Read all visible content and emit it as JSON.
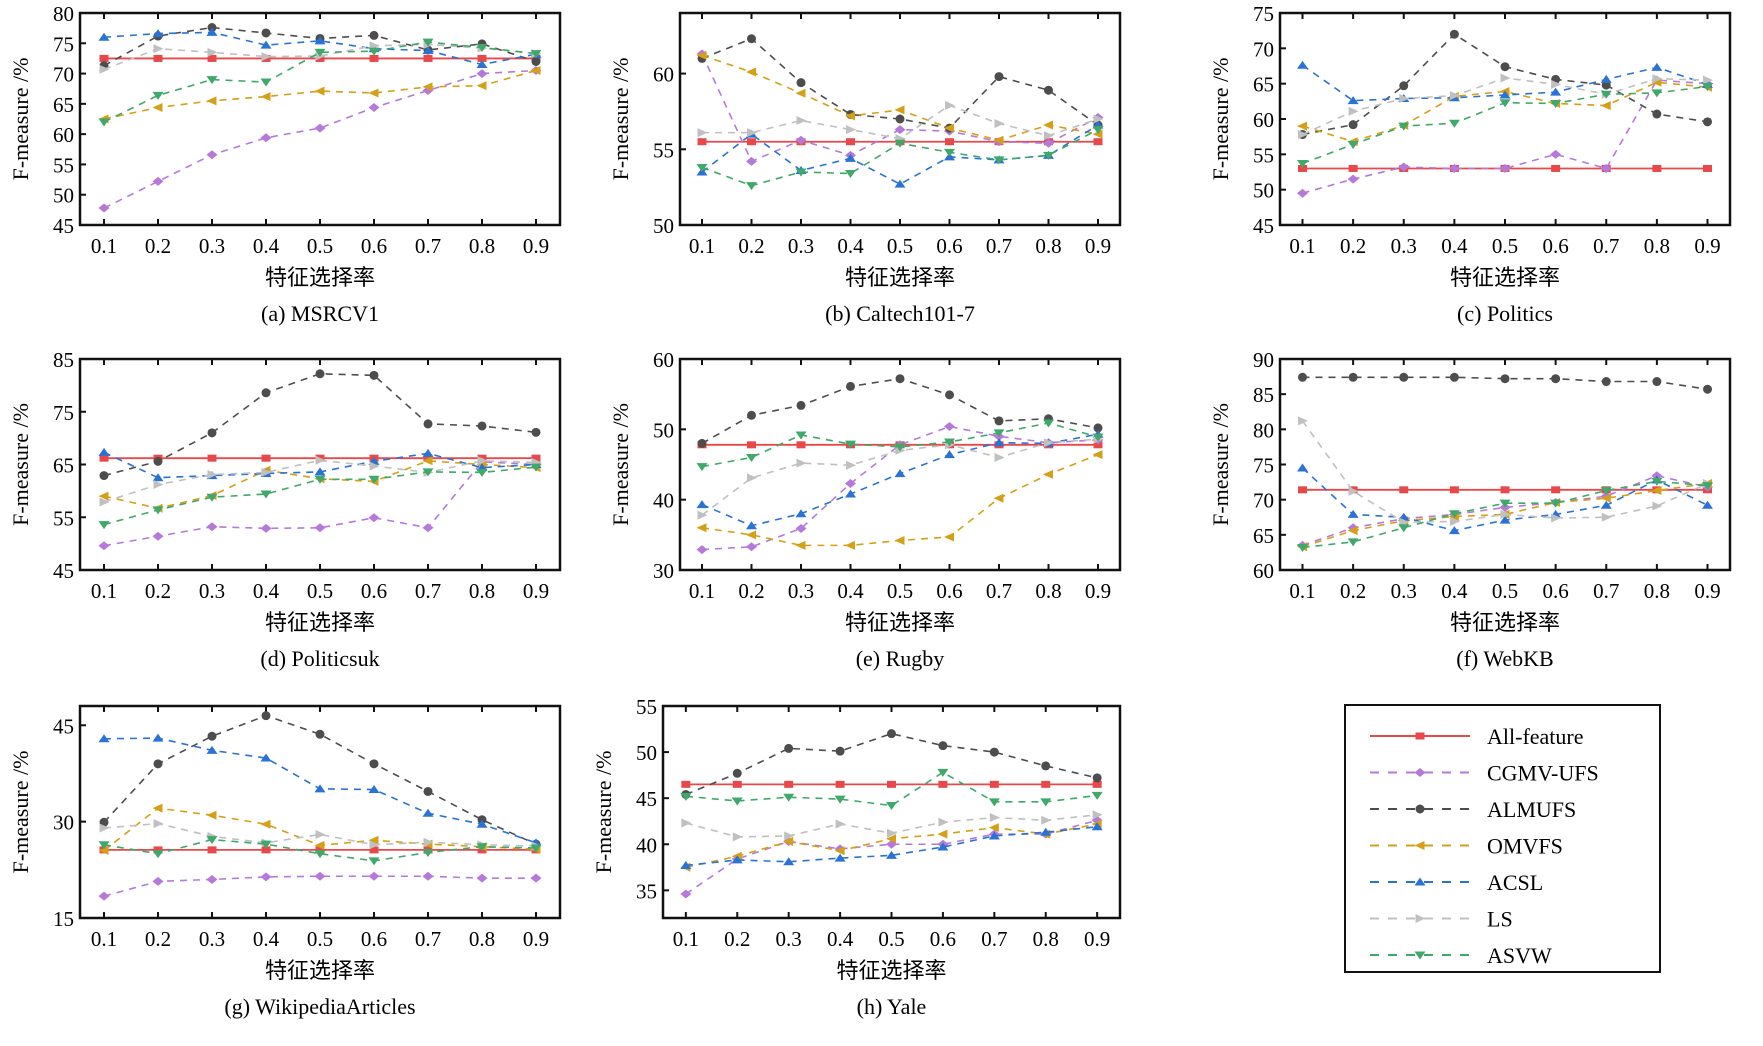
{
  "figure": {
    "series_styles": [
      {
        "name": "All-feature",
        "color": "#e8484a",
        "marker": "square",
        "dash": false
      },
      {
        "name": "CGMV-UFS",
        "color": "#b57ad9",
        "marker": "diamond",
        "dash": true
      },
      {
        "name": "ALMUFS",
        "color": "#4d4d4d",
        "marker": "circle",
        "dash": true
      },
      {
        "name": "OMVFS",
        "color": "#d4a017",
        "marker": "triangle-left",
        "dash": true
      },
      {
        "name": "ACSL",
        "color": "#2a72d4",
        "marker": "triangle-up",
        "dash": true
      },
      {
        "name": "LS",
        "color": "#c0c0c0",
        "marker": "triangle-right",
        "dash": true
      },
      {
        "name": "ASVW",
        "color": "#3fa86a",
        "marker": "triangle-down",
        "dash": true
      }
    ],
    "legend": {
      "placement": "bottom-right",
      "entries": [
        "All-feature",
        "CGMV-UFS",
        "ALMUFS",
        "OMVFS",
        "ACSL",
        "LS",
        "ASVW"
      ]
    }
  },
  "chart_data": [
    {
      "type": "line",
      "title": "(a) MSRCV1",
      "xlabel": "特征选择率",
      "ylabel": "F-measure /%",
      "x": [
        0.1,
        0.2,
        0.3,
        0.4,
        0.5,
        0.6,
        0.7,
        0.8,
        0.9
      ],
      "xticks": [
        "0.1",
        "0.2",
        "0.3",
        "0.4",
        "0.5",
        "0.6",
        "0.7",
        "0.8",
        "0.9"
      ],
      "ylim": [
        45,
        80
      ],
      "yticks": [
        45,
        50,
        55,
        60,
        65,
        70,
        75,
        80
      ],
      "series": [
        {
          "name": "All-feature",
          "values": [
            72.5,
            72.5,
            72.5,
            72.5,
            72.5,
            72.5,
            72.5,
            72.5,
            72.5
          ]
        },
        {
          "name": "CGMV-UFS",
          "values": [
            47.8,
            52.2,
            56.6,
            59.4,
            61.0,
            64.4,
            67.2,
            70.0,
            70.5
          ]
        },
        {
          "name": "ALMUFS",
          "values": [
            71.3,
            76.2,
            77.6,
            76.7,
            75.8,
            76.3,
            73.9,
            74.9,
            72.0
          ]
        },
        {
          "name": "OMVFS",
          "values": [
            62.5,
            64.4,
            65.5,
            66.2,
            67.1,
            66.8,
            67.8,
            68.0,
            70.5
          ]
        },
        {
          "name": "ACSL",
          "values": [
            76.0,
            76.6,
            76.8,
            74.7,
            75.4,
            74.1,
            73.8,
            71.5,
            73.2
          ]
        },
        {
          "name": "LS",
          "values": [
            70.7,
            74.1,
            73.5,
            72.8,
            72.9,
            74.6,
            74.8,
            74.2,
            73.3
          ]
        },
        {
          "name": "ASVW",
          "values": [
            62.0,
            66.4,
            69.0,
            68.6,
            73.5,
            73.7,
            75.2,
            74.3,
            73.3
          ]
        }
      ]
    },
    {
      "type": "line",
      "title": "(b) Caltech101-7",
      "xlabel": "特征选择率",
      "ylabel": "F-measure /%",
      "x": [
        0.1,
        0.2,
        0.3,
        0.4,
        0.5,
        0.6,
        0.7,
        0.8,
        0.9
      ],
      "xticks": [
        "0.1",
        "0.2",
        "0.3",
        "0.4",
        "0.5",
        "0.6",
        "0.7",
        "0.8",
        "0.9"
      ],
      "ylim": [
        50,
        64
      ],
      "yticks": [
        50,
        55,
        60
      ],
      "series": [
        {
          "name": "All-feature",
          "values": [
            55.5,
            55.5,
            55.5,
            55.5,
            55.5,
            55.5,
            55.5,
            55.5,
            55.5
          ]
        },
        {
          "name": "CGMV-UFS",
          "values": [
            61.3,
            54.2,
            55.6,
            54.6,
            56.3,
            56.2,
            55.5,
            55.4,
            57.1
          ]
        },
        {
          "name": "ALMUFS",
          "values": [
            61.0,
            62.3,
            59.4,
            57.3,
            57.0,
            56.4,
            59.8,
            58.9,
            56.6
          ]
        },
        {
          "name": "OMVFS",
          "values": [
            61.2,
            60.1,
            58.7,
            57.2,
            57.6,
            56.4,
            55.6,
            56.6,
            56.0
          ]
        },
        {
          "name": "ACSL",
          "values": [
            53.5,
            56.0,
            53.6,
            54.4,
            52.7,
            54.5,
            54.3,
            54.6,
            56.6
          ]
        },
        {
          "name": "LS",
          "values": [
            56.1,
            56.1,
            56.9,
            56.3,
            55.7,
            57.9,
            56.7,
            55.9,
            57.0
          ]
        },
        {
          "name": "ASVW",
          "values": [
            53.8,
            52.6,
            53.5,
            53.4,
            55.4,
            54.8,
            54.3,
            54.6,
            56.3
          ]
        }
      ]
    },
    {
      "type": "line",
      "title": "(c) Politics",
      "xlabel": "特征选择率",
      "ylabel": "F-measure /%",
      "x": [
        0.1,
        0.2,
        0.3,
        0.4,
        0.5,
        0.6,
        0.7,
        0.8,
        0.9
      ],
      "xticks": [
        "0.1",
        "0.2",
        "0.3",
        "0.4",
        "0.5",
        "0.6",
        "0.7",
        "0.8",
        "0.9"
      ],
      "ylim": [
        45,
        75
      ],
      "yticks": [
        45,
        50,
        55,
        60,
        65,
        70,
        75
      ],
      "series": [
        {
          "name": "All-feature",
          "values": [
            53.0,
            53.0,
            53.0,
            53.0,
            53.0,
            53.0,
            53.0,
            53.0,
            53.0
          ]
        },
        {
          "name": "CGMV-UFS",
          "values": [
            49.5,
            51.5,
            53.2,
            53.0,
            53.0,
            55.0,
            53.0,
            65.5,
            65.0
          ]
        },
        {
          "name": "ALMUFS",
          "values": [
            57.8,
            59.2,
            64.7,
            72.0,
            67.4,
            65.6,
            64.8,
            60.7,
            59.6
          ]
        },
        {
          "name": "OMVFS",
          "values": [
            59.0,
            56.8,
            59.1,
            63.2,
            63.9,
            62.2,
            61.9,
            65.2,
            64.5
          ]
        },
        {
          "name": "ACSL",
          "values": [
            67.6,
            62.6,
            62.9,
            63.0,
            63.4,
            63.8,
            65.6,
            67.3,
            64.9
          ]
        },
        {
          "name": "LS",
          "values": [
            57.8,
            61.1,
            62.9,
            63.3,
            65.8,
            64.9,
            63.5,
            65.7,
            65.5
          ]
        },
        {
          "name": "ASVW",
          "values": [
            53.7,
            56.4,
            59.0,
            59.4,
            62.3,
            62.2,
            63.5,
            63.7,
            64.6
          ]
        }
      ]
    },
    {
      "type": "line",
      "title": "(d) Politicsuk",
      "xlabel": "特征选择率",
      "ylabel": "F-measure /%",
      "x": [
        0.1,
        0.2,
        0.3,
        0.4,
        0.5,
        0.6,
        0.7,
        0.8,
        0.9
      ],
      "xticks": [
        "0.1",
        "0.2",
        "0.3",
        "0.4",
        "0.5",
        "0.6",
        "0.7",
        "0.8",
        "0.9"
      ],
      "ylim": [
        45,
        85
      ],
      "yticks": [
        45,
        55,
        65,
        75,
        85
      ],
      "series": [
        {
          "name": "All-feature",
          "values": [
            66.2,
            66.2,
            66.2,
            66.2,
            66.2,
            66.2,
            66.2,
            66.2,
            66.2
          ]
        },
        {
          "name": "CGMV-UFS",
          "values": [
            49.6,
            51.4,
            53.2,
            52.9,
            53.0,
            54.9,
            53.0,
            65.5,
            65.0
          ]
        },
        {
          "name": "ALMUFS",
          "values": [
            62.9,
            65.6,
            71.0,
            78.6,
            82.2,
            81.9,
            72.7,
            72.3,
            71.1
          ]
        },
        {
          "name": "OMVFS",
          "values": [
            59.0,
            56.7,
            59.1,
            63.9,
            62.3,
            61.8,
            65.7,
            65.0,
            64.4
          ]
        },
        {
          "name": "ACSL",
          "values": [
            67.3,
            62.5,
            62.9,
            63.3,
            63.6,
            65.6,
            67.1,
            64.4,
            65.0
          ]
        },
        {
          "name": "LS",
          "values": [
            57.9,
            61.2,
            63.1,
            63.5,
            65.8,
            64.7,
            63.5,
            65.7,
            65.4
          ]
        },
        {
          "name": "ASVW",
          "values": [
            53.6,
            56.4,
            58.8,
            59.4,
            62.2,
            62.2,
            63.6,
            63.5,
            64.5
          ]
        }
      ]
    },
    {
      "type": "line",
      "title": "(e) Rugby",
      "xlabel": "特征选择率",
      "ylabel": "F-measure /%",
      "x": [
        0.1,
        0.2,
        0.3,
        0.4,
        0.5,
        0.6,
        0.7,
        0.8,
        0.9
      ],
      "xticks": [
        "0.1",
        "0.2",
        "0.3",
        "0.4",
        "0.5",
        "0.6",
        "0.7",
        "0.8",
        "0.9"
      ],
      "ylim": [
        30,
        60
      ],
      "yticks": [
        30,
        40,
        50,
        60
      ],
      "series": [
        {
          "name": "All-feature",
          "values": [
            47.8,
            47.8,
            47.8,
            47.8,
            47.8,
            47.8,
            47.8,
            47.8,
            47.8
          ]
        },
        {
          "name": "CGMV-UFS",
          "values": [
            32.9,
            33.3,
            35.9,
            42.3,
            47.8,
            50.4,
            49.0,
            48.1,
            48.5
          ]
        },
        {
          "name": "ALMUFS",
          "values": [
            48.0,
            52.0,
            53.4,
            56.1,
            57.2,
            54.9,
            51.2,
            51.5,
            50.2
          ]
        },
        {
          "name": "OMVFS",
          "values": [
            36.0,
            35.0,
            33.5,
            33.5,
            34.2,
            34.7,
            40.2,
            43.6,
            46.4
          ]
        },
        {
          "name": "ACSL",
          "values": [
            39.3,
            36.3,
            38.0,
            40.8,
            43.7,
            46.4,
            48.1,
            48.0,
            49.3
          ]
        },
        {
          "name": "LS",
          "values": [
            37.8,
            43.1,
            45.2,
            44.9,
            47.0,
            47.8,
            46.0,
            48.1,
            48.6
          ]
        },
        {
          "name": "ASVW",
          "values": [
            44.7,
            46.0,
            49.2,
            47.9,
            47.5,
            48.2,
            49.5,
            50.9,
            48.9
          ]
        }
      ]
    },
    {
      "type": "line",
      "title": "(f) WebKB",
      "xlabel": "特征选择率",
      "ylabel": "F-measure /%",
      "x": [
        0.1,
        0.2,
        0.3,
        0.4,
        0.5,
        0.6,
        0.7,
        0.8,
        0.9
      ],
      "xticks": [
        "0.1",
        "0.2",
        "0.3",
        "0.4",
        "0.5",
        "0.6",
        "0.7",
        "0.8",
        "0.9"
      ],
      "ylim": [
        60,
        90
      ],
      "yticks": [
        60,
        65,
        70,
        75,
        80,
        85,
        90
      ],
      "series": [
        {
          "name": "All-feature",
          "values": [
            71.4,
            71.4,
            71.4,
            71.4,
            71.4,
            71.4,
            71.4,
            71.4,
            71.4
          ]
        },
        {
          "name": "CGMV-UFS",
          "values": [
            63.5,
            66.0,
            67.3,
            67.9,
            68.9,
            69.6,
            70.5,
            73.4,
            71.8
          ]
        },
        {
          "name": "ALMUFS",
          "values": [
            87.4,
            87.4,
            87.4,
            87.4,
            87.2,
            87.2,
            86.8,
            86.8,
            85.7
          ]
        },
        {
          "name": "OMVFS",
          "values": [
            63.3,
            65.6,
            67.0,
            67.6,
            67.9,
            69.6,
            70.2,
            71.3,
            72.3
          ]
        },
        {
          "name": "ACSL",
          "values": [
            74.5,
            67.9,
            67.5,
            65.6,
            67.1,
            67.9,
            69.2,
            72.8,
            69.2
          ]
        },
        {
          "name": "LS",
          "values": [
            81.2,
            71.2,
            66.8,
            66.9,
            67.9,
            67.4,
            67.5,
            69.1,
            72.3
          ]
        },
        {
          "name": "ASVW",
          "values": [
            63.2,
            64.0,
            66.0,
            68.0,
            69.5,
            69.5,
            71.3,
            72.6,
            72.0
          ]
        }
      ]
    },
    {
      "type": "line",
      "title": "(g) WikipediaArticles",
      "xlabel": "特征选择率",
      "ylabel": "F-measure /%",
      "x": [
        0.1,
        0.2,
        0.3,
        0.4,
        0.5,
        0.6,
        0.7,
        0.8,
        0.9
      ],
      "xticks": [
        "0.1",
        "0.2",
        "0.3",
        "0.4",
        "0.5",
        "0.6",
        "0.7",
        "0.8",
        "0.9"
      ],
      "ylim": [
        15,
        48
      ],
      "yticks": [
        15,
        30,
        45
      ],
      "series": [
        {
          "name": "All-feature",
          "values": [
            25.6,
            25.6,
            25.6,
            25.6,
            25.6,
            25.6,
            25.6,
            25.6,
            25.6
          ]
        },
        {
          "name": "CGMV-UFS",
          "values": [
            18.4,
            20.7,
            21.0,
            21.4,
            21.5,
            21.5,
            21.5,
            21.2,
            21.2
          ]
        },
        {
          "name": "ALMUFS",
          "values": [
            29.9,
            39.0,
            43.3,
            46.5,
            43.6,
            39.0,
            34.7,
            30.3,
            26.5
          ]
        },
        {
          "name": "OMVFS",
          "values": [
            25.5,
            32.1,
            31.0,
            29.6,
            26.3,
            27.1,
            26.5,
            26.1,
            25.7
          ]
        },
        {
          "name": "ACSL",
          "values": [
            42.9,
            43.0,
            41.1,
            39.9,
            35.1,
            35.0,
            31.3,
            29.6,
            26.7
          ]
        },
        {
          "name": "LS",
          "values": [
            29.0,
            29.7,
            27.7,
            26.7,
            28.0,
            26.4,
            26.8,
            26.4,
            26.2
          ]
        },
        {
          "name": "ASVW",
          "values": [
            26.4,
            25.0,
            27.2,
            26.5,
            25.0,
            23.9,
            25.2,
            26.1,
            25.9
          ]
        }
      ]
    },
    {
      "type": "line",
      "title": "(h) Yale",
      "xlabel": "特征选择率",
      "ylabel": "F-measure /%",
      "x": [
        0.1,
        0.2,
        0.3,
        0.4,
        0.5,
        0.6,
        0.7,
        0.8,
        0.9
      ],
      "xticks": [
        "0.1",
        "0.2",
        "0.3",
        "0.4",
        "0.5",
        "0.6",
        "0.7",
        "0.8",
        "0.9"
      ],
      "ylim": [
        32,
        55
      ],
      "yticks": [
        35,
        40,
        45,
        50,
        55
      ],
      "series": [
        {
          "name": "All-feature",
          "values": [
            46.5,
            46.5,
            46.5,
            46.5,
            46.5,
            46.5,
            46.5,
            46.5,
            46.5
          ]
        },
        {
          "name": "CGMV-UFS",
          "values": [
            34.6,
            38.4,
            40.3,
            39.5,
            40.0,
            40.0,
            41.1,
            41.1,
            42.6
          ]
        },
        {
          "name": "ALMUFS",
          "values": [
            45.4,
            47.7,
            50.4,
            50.1,
            52.0,
            50.7,
            50.0,
            48.5,
            47.2
          ]
        },
        {
          "name": "OMVFS",
          "values": [
            37.5,
            38.7,
            40.3,
            39.3,
            40.6,
            41.1,
            41.8,
            41.1,
            42.2
          ]
        },
        {
          "name": "ACSL",
          "values": [
            37.7,
            38.3,
            38.1,
            38.5,
            38.8,
            39.7,
            40.9,
            41.3,
            41.9
          ]
        },
        {
          "name": "LS",
          "values": [
            42.3,
            40.8,
            40.9,
            42.2,
            41.2,
            42.4,
            42.9,
            42.6,
            43.2
          ]
        },
        {
          "name": "ASVW",
          "values": [
            45.2,
            44.7,
            45.1,
            44.9,
            44.2,
            47.8,
            44.6,
            44.6,
            45.3
          ]
        }
      ]
    }
  ]
}
